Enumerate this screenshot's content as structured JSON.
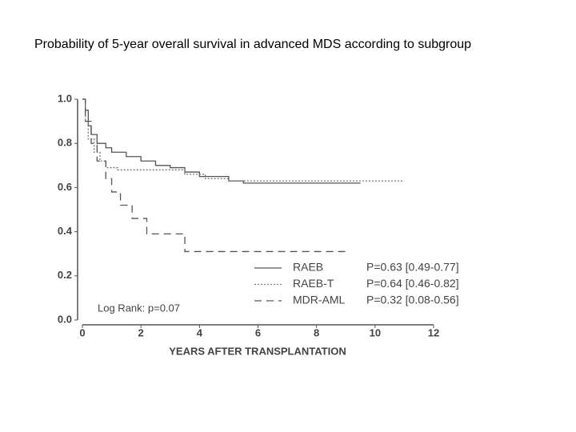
{
  "chart_data": {
    "type": "step",
    "title": "Probability of 5-year overall survival in advanced MDS according to subgroup",
    "x_label": "YEARS AFTER TRANSPLANTATION",
    "annotation": "Log Rank: p=0.07",
    "xlim": [
      0,
      12
    ],
    "xticks": [
      0,
      2,
      4,
      6,
      8,
      10,
      12
    ],
    "ylim": [
      0,
      1
    ],
    "yticks": [
      {
        "value": 0,
        "label": "0.0"
      },
      0.2,
      0.4,
      0.6,
      0.8,
      {
        "value": 1,
        "label": "1.0"
      }
    ],
    "series": [
      {
        "name": "RAEB",
        "label": "P=0.63 [0.49-0.77]",
        "color": "#555555",
        "line_style": "solid",
        "x": [
          0,
          0.1,
          0.2,
          0.3,
          0.5,
          0.8,
          1.0,
          1.5,
          2.0,
          2.5,
          3.0,
          3.5,
          4.0,
          5.0,
          5.5,
          9.5
        ],
        "values": [
          1.0,
          0.95,
          0.88,
          0.84,
          0.8,
          0.78,
          0.76,
          0.74,
          0.72,
          0.7,
          0.69,
          0.67,
          0.65,
          0.63,
          0.62,
          0.62
        ]
      },
      {
        "name": "RAEB-T",
        "label": "P=0.64 [0.46-0.82]",
        "color": "#777777",
        "line_style": "dotted",
        "x": [
          0,
          0.1,
          0.2,
          0.4,
          0.6,
          0.8,
          1.2,
          3.5,
          4.2,
          5.0,
          11.0
        ],
        "values": [
          1.0,
          0.9,
          0.82,
          0.76,
          0.72,
          0.69,
          0.68,
          0.66,
          0.64,
          0.63,
          0.63
        ]
      },
      {
        "name": "MDR-AML",
        "label": "P=0.32 [0.08-0.56]",
        "color": "#555555",
        "line_style": "dashed",
        "x": [
          0,
          0.1,
          0.3,
          0.5,
          0.8,
          1.0,
          1.3,
          1.7,
          2.2,
          3.5,
          9.0
        ],
        "values": [
          1.0,
          0.9,
          0.8,
          0.72,
          0.64,
          0.58,
          0.52,
          0.46,
          0.39,
          0.31,
          0.31
        ]
      }
    ]
  }
}
